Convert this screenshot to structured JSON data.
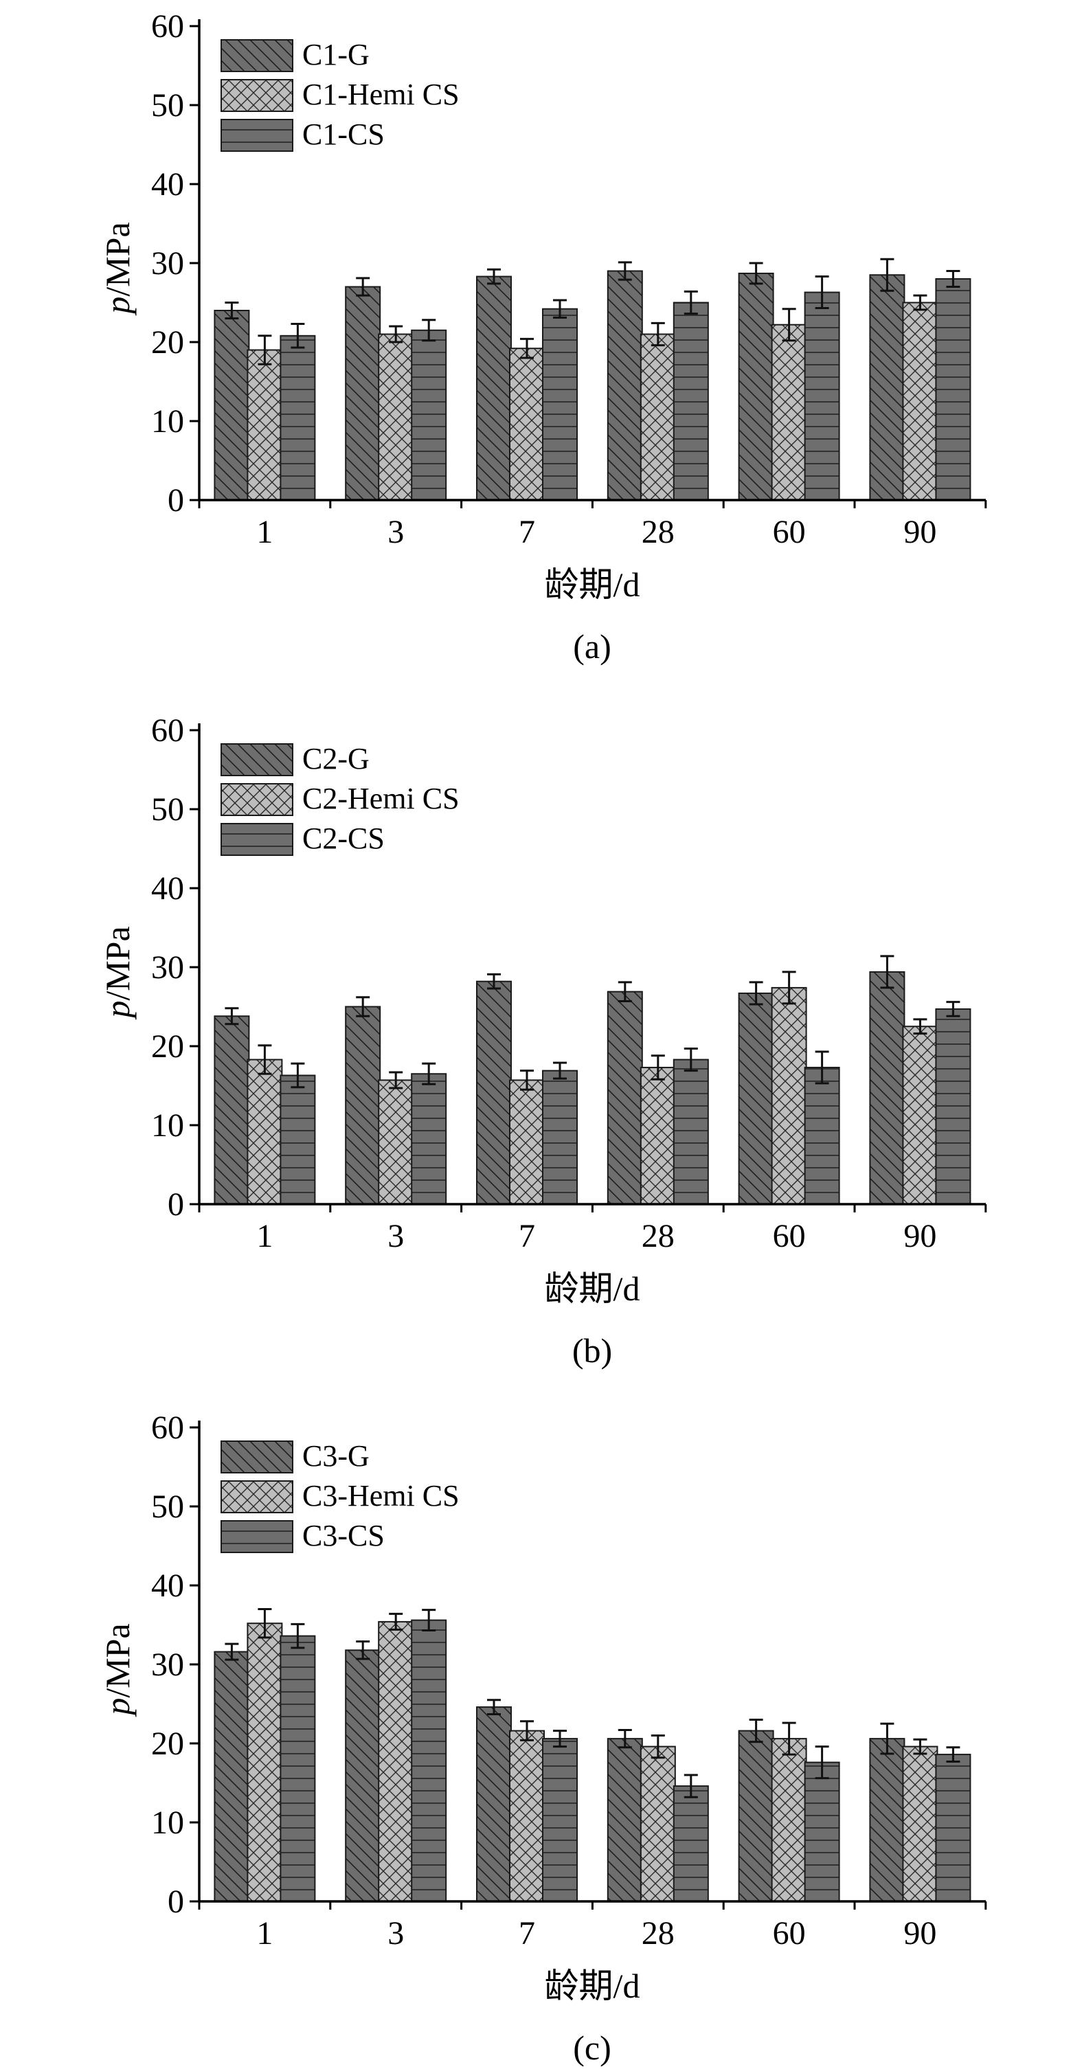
{
  "chart_data": [
    {
      "type": "bar",
      "caption": "(a)",
      "ylabel_var": "p",
      "ylabel_unit": "/MPa",
      "xlabel": "龄期/d",
      "ylim": [
        0,
        60
      ],
      "yticks": [
        "0",
        "10",
        "20",
        "30",
        "40",
        "50",
        "60"
      ],
      "categories": [
        "1",
        "3",
        "7",
        "28",
        "60",
        "90"
      ],
      "legend_position": "top-left",
      "series": [
        {
          "name": "C1-G",
          "pattern": "diag",
          "color": "#6e6e6e",
          "values": [
            24,
            27,
            28.3,
            29,
            28.7,
            28.5
          ],
          "errors": [
            1.0,
            1.1,
            0.9,
            1.1,
            1.3,
            2.0
          ]
        },
        {
          "name": "C1-Hemi CS",
          "pattern": "cross",
          "color": "#bdbdbd",
          "values": [
            19,
            21,
            19.2,
            21,
            22.2,
            25
          ],
          "errors": [
            1.8,
            1.0,
            1.2,
            1.4,
            2.0,
            0.9
          ]
        },
        {
          "name": "C1-CS",
          "pattern": "horiz",
          "color": "#6e6e6e",
          "values": [
            20.8,
            21.5,
            24.2,
            25,
            26.3,
            28
          ],
          "errors": [
            1.5,
            1.3,
            1.1,
            1.4,
            2.0,
            1.0
          ]
        }
      ]
    },
    {
      "type": "bar",
      "caption": "(b)",
      "ylabel_var": "p",
      "ylabel_unit": "/MPa",
      "xlabel": "龄期/d",
      "ylim": [
        0,
        60
      ],
      "yticks": [
        "0",
        "10",
        "20",
        "30",
        "40",
        "50",
        "60"
      ],
      "categories": [
        "1",
        "3",
        "7",
        "28",
        "60",
        "90"
      ],
      "legend_position": "top-left",
      "series": [
        {
          "name": "C2-G",
          "pattern": "diag",
          "color": "#6e6e6e",
          "values": [
            23.8,
            25,
            28.2,
            26.9,
            26.7,
            29.4
          ],
          "errors": [
            1.0,
            1.2,
            0.9,
            1.2,
            1.4,
            2.0
          ]
        },
        {
          "name": "C2-Hemi CS",
          "pattern": "cross",
          "color": "#bdbdbd",
          "values": [
            18.3,
            15.7,
            15.7,
            17.3,
            27.4,
            22.5
          ],
          "errors": [
            1.8,
            1.0,
            1.2,
            1.5,
            2.0,
            0.9
          ]
        },
        {
          "name": "C2-CS",
          "pattern": "horiz",
          "color": "#6e6e6e",
          "values": [
            16.3,
            16.5,
            16.9,
            18.3,
            17.3,
            24.7
          ],
          "errors": [
            1.5,
            1.3,
            1.0,
            1.4,
            2.0,
            0.9
          ]
        }
      ]
    },
    {
      "type": "bar",
      "caption": "(c)",
      "ylabel_var": "p",
      "ylabel_unit": "/MPa",
      "xlabel": "龄期/d",
      "ylim": [
        0,
        60
      ],
      "yticks": [
        "0",
        "10",
        "20",
        "30",
        "40",
        "50",
        "60"
      ],
      "categories": [
        "1",
        "3",
        "7",
        "28",
        "60",
        "90"
      ],
      "legend_position": "top-left",
      "series": [
        {
          "name": "C3-G",
          "pattern": "diag",
          "color": "#6e6e6e",
          "values": [
            31.6,
            31.8,
            24.6,
            20.6,
            21.6,
            20.6
          ],
          "errors": [
            1.0,
            1.1,
            0.9,
            1.1,
            1.4,
            1.9
          ]
        },
        {
          "name": "C3-Hemi CS",
          "pattern": "cross",
          "color": "#bdbdbd",
          "values": [
            35.2,
            35.4,
            21.6,
            19.6,
            20.6,
            19.6
          ],
          "errors": [
            1.8,
            1.0,
            1.2,
            1.4,
            2.0,
            0.9
          ]
        },
        {
          "name": "C3-CS",
          "pattern": "horiz",
          "color": "#6e6e6e",
          "values": [
            33.6,
            35.6,
            20.6,
            14.6,
            17.6,
            18.6
          ],
          "errors": [
            1.5,
            1.3,
            1.0,
            1.4,
            2.0,
            0.9
          ]
        }
      ]
    }
  ]
}
